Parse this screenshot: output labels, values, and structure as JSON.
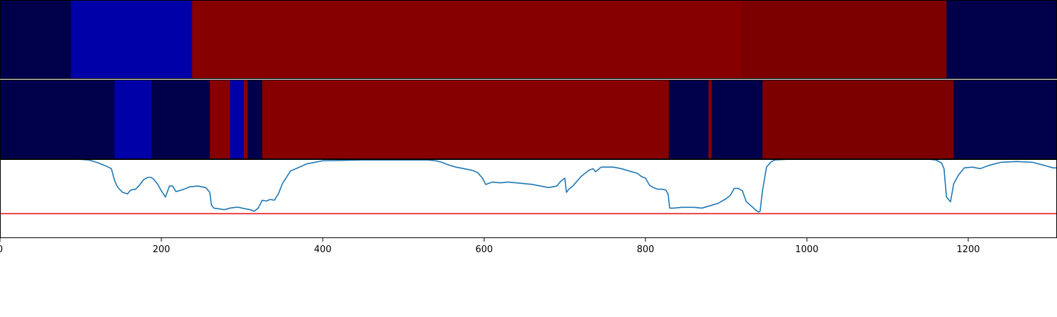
{
  "chart_data": [
    {
      "type": "heatmap",
      "xlim": [
        0,
        1310
      ],
      "colors": {
        "dark_navy": "#00004a",
        "blue": "#0000a8",
        "red": "#870000",
        "dark_red": "#7c0000"
      },
      "segments": [
        {
          "start": 0,
          "end": 88,
          "color": "#00004a"
        },
        {
          "start": 88,
          "end": 238,
          "color": "#0000a8"
        },
        {
          "start": 238,
          "end": 918,
          "color": "#870000"
        },
        {
          "start": 918,
          "end": 1173,
          "color": "#7c0000"
        },
        {
          "start": 1173,
          "end": 1310,
          "color": "#00004a"
        }
      ]
    },
    {
      "type": "heatmap",
      "xlim": [
        0,
        1310
      ],
      "segments": [
        {
          "start": 0,
          "end": 142,
          "color": "#00004a"
        },
        {
          "start": 142,
          "end": 188,
          "color": "#0000a8"
        },
        {
          "start": 188,
          "end": 260,
          "color": "#00004a"
        },
        {
          "start": 260,
          "end": 285,
          "color": "#870000"
        },
        {
          "start": 285,
          "end": 302,
          "color": "#0000a8"
        },
        {
          "start": 302,
          "end": 307,
          "color": "#870000"
        },
        {
          "start": 307,
          "end": 325,
          "color": "#00004a"
        },
        {
          "start": 325,
          "end": 829,
          "color": "#870000"
        },
        {
          "start": 829,
          "end": 878,
          "color": "#00004a"
        },
        {
          "start": 878,
          "end": 882,
          "color": "#870000"
        },
        {
          "start": 882,
          "end": 945,
          "color": "#00004a"
        },
        {
          "start": 945,
          "end": 1182,
          "color": "#7c0000"
        },
        {
          "start": 1182,
          "end": 1310,
          "color": "#00004a"
        }
      ]
    },
    {
      "type": "line",
      "xlim": [
        0,
        1310
      ],
      "ylim": [
        0,
        1
      ],
      "xticks": [
        0,
        200,
        400,
        600,
        800,
        1000,
        1200
      ],
      "xtick_labels": [
        "0",
        "200",
        "400",
        "600",
        "800",
        "1000",
        "1200"
      ],
      "threshold": 0.31,
      "threshold_color": "#e41a1c",
      "line_color": "#1f77b4",
      "series": [
        {
          "x": [
            0,
            30,
            60,
            95,
            110,
            120,
            130,
            138,
            142,
            145,
            148,
            152,
            158,
            162,
            168,
            172,
            178,
            183,
            187,
            190,
            195,
            200,
            205,
            210,
            214,
            218,
            222,
            228,
            235,
            245,
            255,
            260,
            262,
            265,
            272,
            278,
            285,
            292,
            296,
            300,
            305,
            310,
            315,
            320,
            325,
            330,
            335,
            340,
            345,
            350,
            360,
            380,
            400,
            450,
            500,
            520,
            530,
            540,
            548,
            555,
            565,
            575,
            585,
            592,
            598,
            602,
            610,
            620,
            630,
            640,
            650,
            660,
            670,
            680,
            690,
            695,
            700,
            702,
            705,
            710,
            720,
            730,
            735,
            738,
            745,
            760,
            770,
            780,
            790,
            795,
            800,
            805,
            810,
            815,
            820,
            825,
            828,
            830,
            835,
            845,
            860,
            870,
            880,
            890,
            900,
            905,
            910,
            915,
            920,
            925,
            932,
            936,
            940,
            942,
            945,
            950,
            955,
            960,
            980,
            1050,
            1100,
            1150,
            1160,
            1167,
            1170,
            1173,
            1178,
            1182,
            1188,
            1195,
            1205,
            1215,
            1225,
            1240,
            1260,
            1280,
            1295,
            1305,
            1310
          ],
          "y": [
            1.0,
            1.0,
            1.0,
            1.0,
            0.99,
            0.96,
            0.92,
            0.88,
            0.73,
            0.66,
            0.62,
            0.58,
            0.56,
            0.61,
            0.62,
            0.66,
            0.74,
            0.77,
            0.77,
            0.75,
            0.69,
            0.6,
            0.52,
            0.66,
            0.66,
            0.59,
            0.6,
            0.62,
            0.65,
            0.66,
            0.64,
            0.58,
            0.42,
            0.38,
            0.37,
            0.36,
            0.38,
            0.39,
            0.39,
            0.38,
            0.37,
            0.36,
            0.34,
            0.38,
            0.48,
            0.47,
            0.49,
            0.48,
            0.56,
            0.69,
            0.85,
            0.94,
            0.98,
            0.99,
            0.99,
            0.99,
            0.99,
            0.98,
            0.96,
            0.93,
            0.9,
            0.88,
            0.86,
            0.83,
            0.76,
            0.68,
            0.71,
            0.7,
            0.71,
            0.7,
            0.69,
            0.68,
            0.66,
            0.64,
            0.66,
            0.72,
            0.76,
            0.58,
            0.62,
            0.66,
            0.78,
            0.86,
            0.88,
            0.84,
            0.9,
            0.9,
            0.88,
            0.85,
            0.82,
            0.78,
            0.76,
            0.67,
            0.64,
            0.62,
            0.62,
            0.61,
            0.56,
            0.38,
            0.38,
            0.39,
            0.39,
            0.38,
            0.41,
            0.44,
            0.5,
            0.54,
            0.63,
            0.63,
            0.6,
            0.46,
            0.4,
            0.36,
            0.33,
            0.34,
            0.6,
            0.9,
            0.96,
            0.99,
            1.0,
            1.0,
            1.0,
            1.0,
            0.99,
            0.95,
            0.88,
            0.52,
            0.46,
            0.69,
            0.8,
            0.89,
            0.9,
            0.88,
            0.92,
            0.96,
            0.97,
            0.96,
            0.92,
            0.89,
            0.89
          ]
        }
      ]
    }
  ]
}
